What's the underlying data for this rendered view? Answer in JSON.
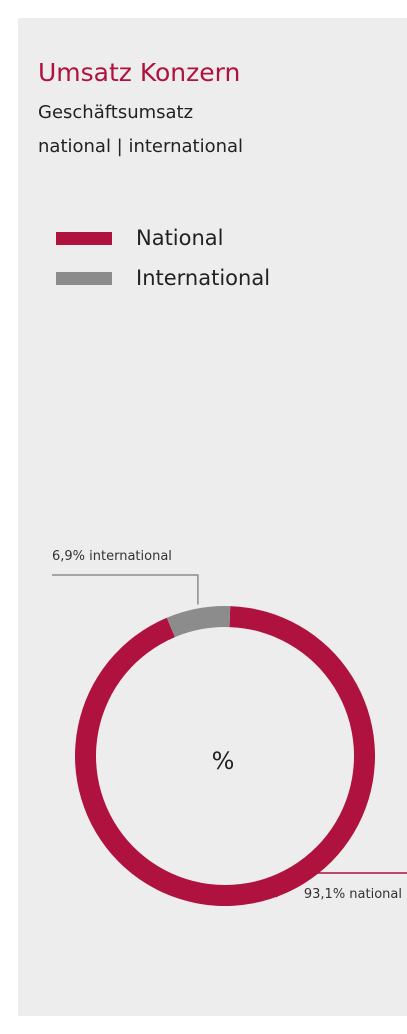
{
  "header": {
    "title": "Umsatz Konzern",
    "subtitle_line1": "Geschäftsumsatz",
    "subtitle_line2": "national | international"
  },
  "colors": {
    "national": "#b0123f",
    "international": "#8c8c8c",
    "title": "#b0123f"
  },
  "chart_data": {
    "type": "pie",
    "title": "Umsatz Konzern",
    "subtitle": "Geschäftsumsatz national | international",
    "center_label": "%",
    "legend_position": "top-left",
    "categories": [
      "National",
      "International"
    ],
    "values": [
      93.1,
      6.9
    ],
    "data_labels": [
      "93,1% national",
      "6,9% international"
    ],
    "colors": [
      "#b0123f",
      "#8c8c8c"
    ]
  }
}
